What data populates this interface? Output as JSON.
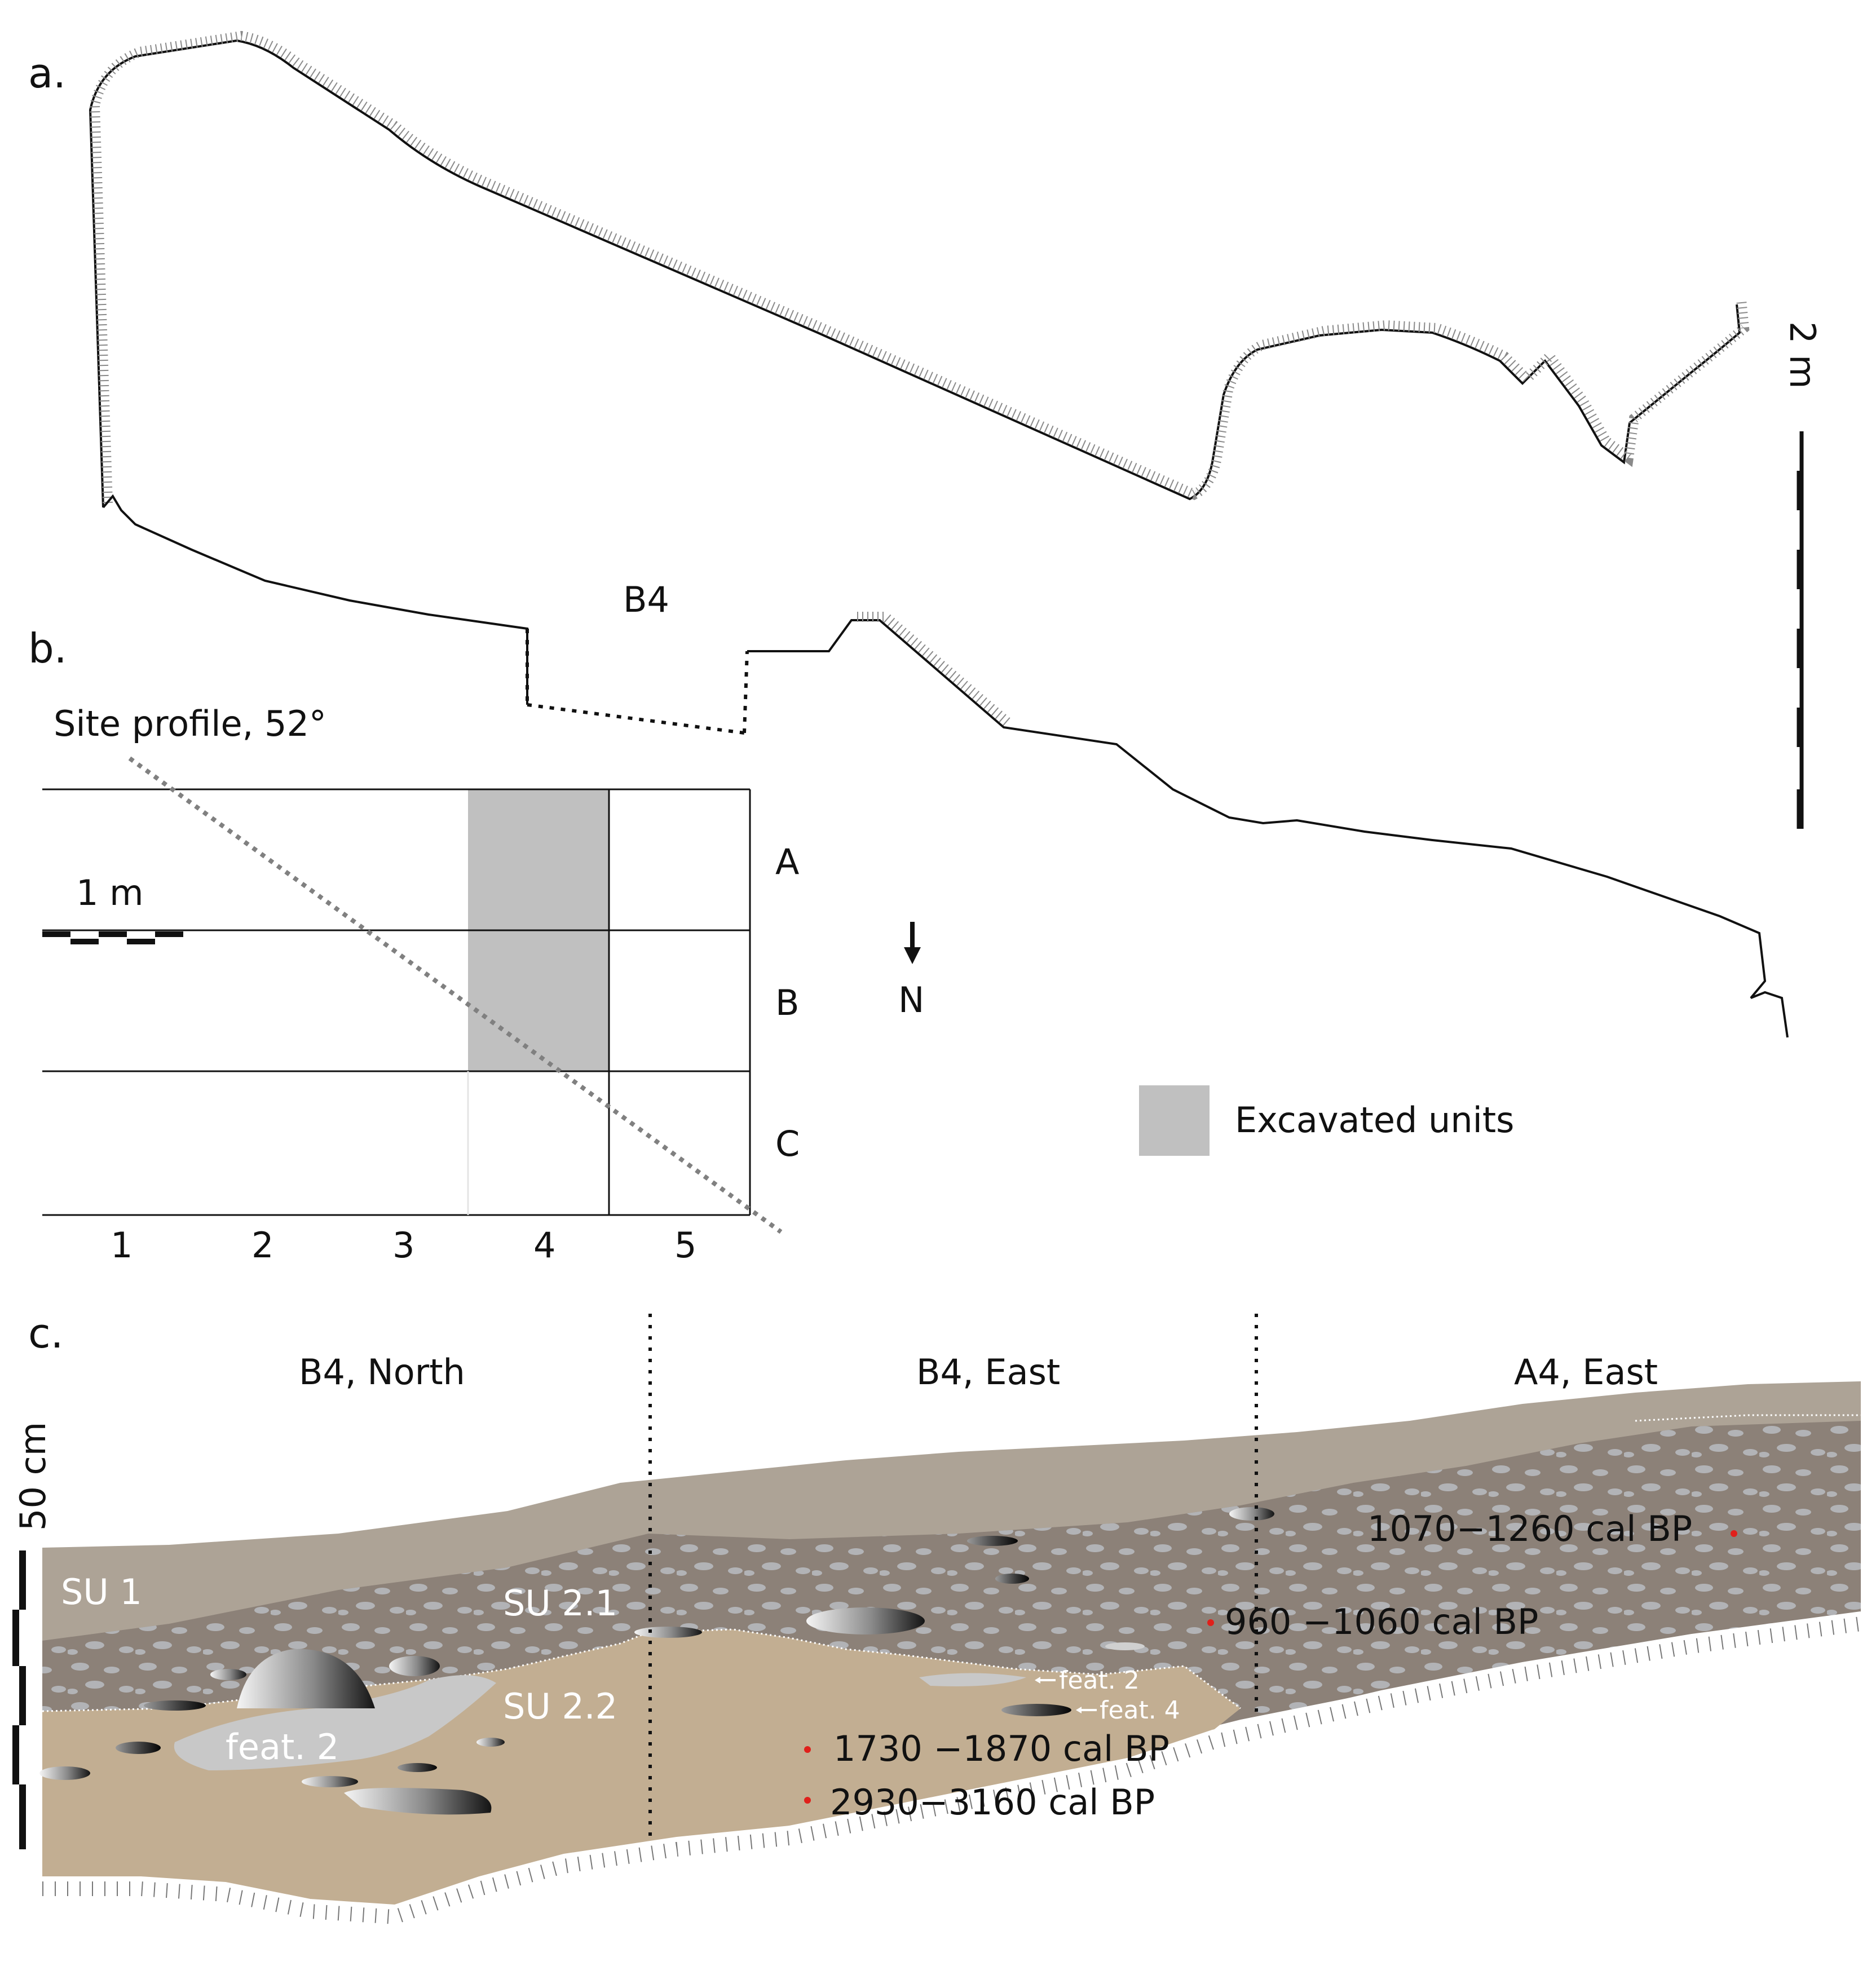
{
  "panels": {
    "a": {
      "letter": "a.",
      "unit_label": "B4",
      "scale_label": "2 m"
    },
    "b": {
      "letter": "b.",
      "profile_label": "Site profile, 52°",
      "scale_label": "1 m",
      "rows": [
        "A",
        "B",
        "C"
      ],
      "columns": [
        "1",
        "2",
        "3",
        "4",
        "5"
      ],
      "excavated_units": [
        "A4",
        "B4"
      ],
      "north_label": "N",
      "legend_label": "Excavated units",
      "colors": {
        "excavated": "#c0c0c0",
        "grid": "#000000",
        "profile_line": "#808080"
      }
    },
    "c": {
      "letter": "c.",
      "scale_label": "50 cm",
      "sections": [
        "B4, North",
        "B4, East",
        "A4, East"
      ],
      "units": [
        "SU 1",
        "SU 2.1",
        "SU 2.2"
      ],
      "features": [
        "feat. 2",
        "feat. 2",
        "feat. 4"
      ],
      "dates": [
        "1070−1260 cal BP",
        "960 −1060 cal BP",
        "1730 −1870 cal BP",
        "2930−3160 cal BP"
      ],
      "colors": {
        "su1": "#ada396",
        "su21": "#8c8178",
        "su22": "#c2ae92",
        "gravel": "#b8bcc0",
        "date_dot": "#e0201b",
        "feature": "#c8c8c8"
      }
    }
  }
}
